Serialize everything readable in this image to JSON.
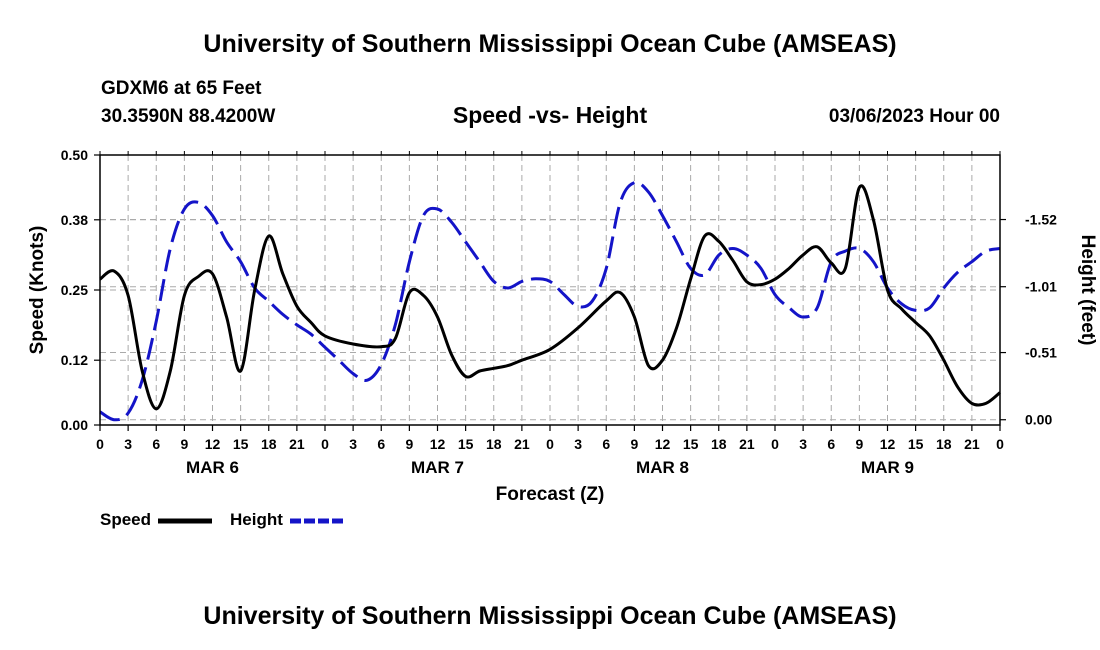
{
  "page": {
    "top_title": "University of Southern Mississippi Ocean Cube (AMSEAS)",
    "bottom_title": "University of Southern Mississippi Ocean Cube (AMSEAS)",
    "station": "GDXM6 at 65 Feet",
    "coords": "30.3590N  88.4200W",
    "datetime": "03/06/2023 Hour 00"
  },
  "colors": {
    "speed": "#000000",
    "height": "#1414c8",
    "grid": "#aaaaaa"
  },
  "chart_data": {
    "type": "line",
    "title": "Speed -vs- Height",
    "xlabel": "Forecast (Z)",
    "ylabel": "Speed (Knots)",
    "y2label": "Height (feet)",
    "xlim": [
      0,
      96
    ],
    "ylim": [
      0,
      0.5
    ],
    "y2lim": [
      0.04,
      -2.01
    ],
    "yticks": [
      0.0,
      0.12,
      0.25,
      0.38,
      0.5
    ],
    "ytick_labels": [
      "0.00",
      "0.12",
      "0.25",
      "0.38",
      "0.50"
    ],
    "y2ticks": [
      0.0,
      -0.51,
      -1.01,
      -1.52
    ],
    "y2tick_labels": [
      "0.00",
      "-0.51",
      "-1.01",
      "-1.52"
    ],
    "xtick_labels": [
      "0",
      "3",
      "6",
      "9",
      "12",
      "15",
      "18",
      "21",
      "0",
      "3",
      "6",
      "9",
      "12",
      "15",
      "18",
      "21",
      "0",
      "3",
      "6",
      "9",
      "12",
      "15",
      "18",
      "21",
      "0",
      "3",
      "6",
      "9",
      "12",
      "15",
      "18",
      "21",
      "0"
    ],
    "day_labels": [
      "MAR 6",
      "MAR 7",
      "MAR 8",
      "MAR 9"
    ],
    "series": [
      {
        "name": "Speed",
        "axis": "left",
        "x": [
          0,
          1.5,
          3,
          4.5,
          6,
          7.5,
          9,
          10.5,
          12,
          13.5,
          15,
          16.5,
          18,
          19.5,
          21,
          22.5,
          24,
          27,
          30,
          31.5,
          33,
          34.5,
          36,
          37.5,
          39,
          40.5,
          42,
          43.5,
          45,
          48,
          51,
          54,
          55.5,
          57,
          58.5,
          60,
          61.5,
          63,
          64.5,
          66,
          67.5,
          69,
          70.5,
          72,
          73.5,
          75,
          76.5,
          78,
          79.5,
          81,
          82.5,
          84,
          85.5,
          87,
          88.5,
          90,
          91.5,
          93,
          94.5,
          96
        ],
        "values": [
          0.27,
          0.285,
          0.24,
          0.1,
          0.03,
          0.1,
          0.24,
          0.275,
          0.28,
          0.2,
          0.1,
          0.25,
          0.35,
          0.28,
          0.22,
          0.19,
          0.165,
          0.15,
          0.145,
          0.16,
          0.245,
          0.24,
          0.2,
          0.13,
          0.09,
          0.1,
          0.105,
          0.11,
          0.12,
          0.14,
          0.18,
          0.23,
          0.245,
          0.2,
          0.11,
          0.12,
          0.18,
          0.27,
          0.35,
          0.34,
          0.305,
          0.265,
          0.26,
          0.27,
          0.29,
          0.315,
          0.33,
          0.3,
          0.29,
          0.44,
          0.38,
          0.25,
          0.215,
          0.19,
          0.165,
          0.12,
          0.07,
          0.04,
          0.04,
          0.06
        ]
      },
      {
        "name": "Height",
        "axis": "right",
        "x": [
          0,
          1.5,
          3,
          4.5,
          6,
          7.5,
          9,
          10.5,
          12,
          13.5,
          15,
          16.5,
          18,
          19.5,
          21,
          22.5,
          24,
          25.5,
          27,
          28.5,
          30,
          31.5,
          33,
          34.5,
          36,
          37.5,
          39,
          40.5,
          42,
          43.5,
          45,
          46.5,
          48,
          49.5,
          51,
          52.5,
          54,
          55.5,
          57,
          58.5,
          60,
          61.5,
          63,
          64.5,
          66,
          67.5,
          69,
          70.5,
          72,
          73.5,
          75,
          76.5,
          78,
          79.5,
          81,
          82.5,
          84,
          85.5,
          87,
          88.5,
          90,
          91.5,
          93,
          94.5,
          96
        ],
        "values": [
          -0.06,
          0.0,
          -0.05,
          -0.3,
          -0.75,
          -1.3,
          -1.6,
          -1.65,
          -1.55,
          -1.35,
          -1.2,
          -1.0,
          -0.9,
          -0.8,
          -0.72,
          -0.65,
          -0.55,
          -0.45,
          -0.35,
          -0.3,
          -0.42,
          -0.72,
          -1.2,
          -1.55,
          -1.6,
          -1.5,
          -1.35,
          -1.2,
          -1.05,
          -1.0,
          -1.05,
          -1.07,
          -1.05,
          -0.95,
          -0.86,
          -0.9,
          -1.15,
          -1.65,
          -1.8,
          -1.73,
          -1.55,
          -1.35,
          -1.15,
          -1.1,
          -1.25,
          -1.3,
          -1.25,
          -1.15,
          -0.95,
          -0.85,
          -0.78,
          -0.85,
          -1.2,
          -1.28,
          -1.3,
          -1.2,
          -1.0,
          -0.88,
          -0.83,
          -0.85,
          -1.0,
          -1.12,
          -1.2,
          -1.28,
          -1.3
        ]
      }
    ],
    "legend": [
      {
        "label": "Speed",
        "style": "solid"
      },
      {
        "label": "Height",
        "style": "dashed"
      }
    ]
  }
}
